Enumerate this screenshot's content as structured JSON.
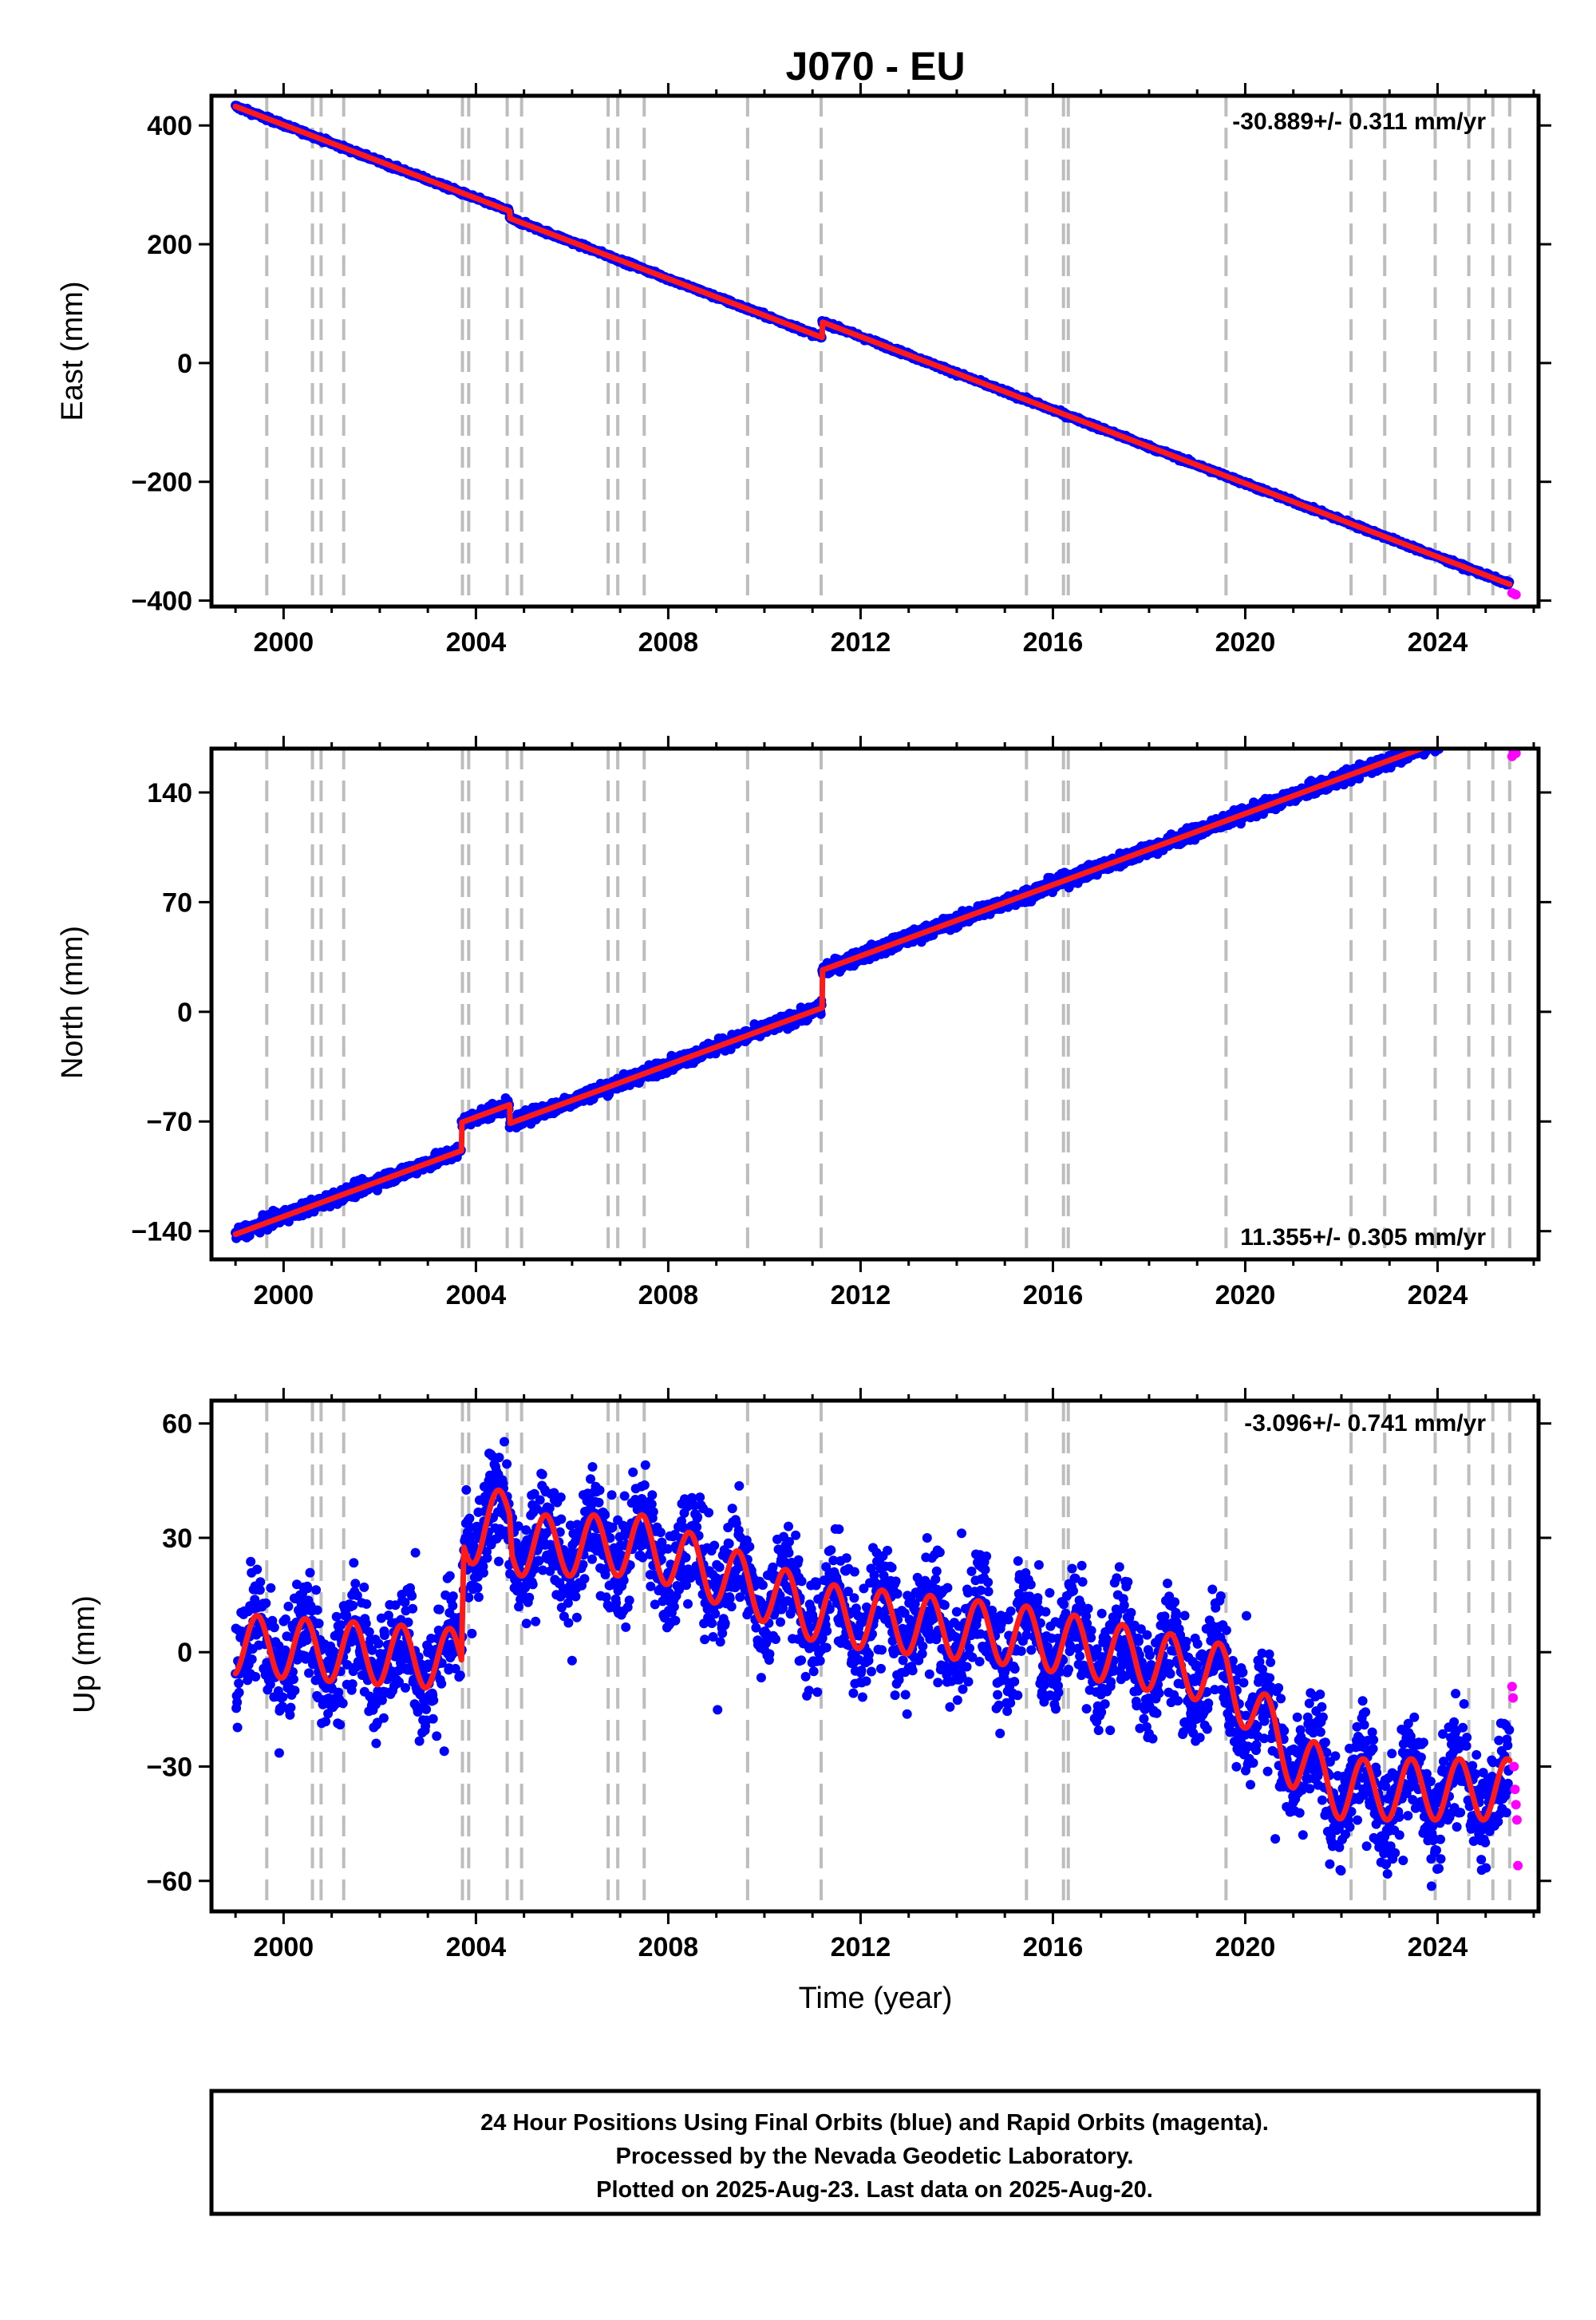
{
  "page": {
    "title": "J070 - EU",
    "xlabel": "Time (year)",
    "footer": [
      "24 Hour Positions Using Final Orbits (blue) and Rapid Orbits (magenta).",
      "Processed by the Nevada Geodetic Laboratory.",
      "Plotted on 2025-Aug-23. Last data on 2025-Aug-20."
    ]
  },
  "colors": {
    "final": "#0000ff",
    "rapid": "#ff00ff",
    "model": "#ff1a1a",
    "events": "#bdbdbd"
  },
  "chart_data": [
    {
      "type": "scatter",
      "name": "east",
      "ylabel": "East (mm)",
      "rate_label": "-30.889+/- 0.311 mm/yr",
      "xlim": [
        1998.5,
        2026.1
      ],
      "ylim": [
        -410,
        450
      ],
      "xticks": [
        2000,
        2004,
        2008,
        2012,
        2016,
        2020,
        2024
      ],
      "yticks": [
        400,
        200,
        0,
        -200,
        -400
      ],
      "ytick_labels": [
        "400",
        "200",
        "0",
        "−200",
        "−400"
      ],
      "series": [
        {
          "kind": "final",
          "x_range": [
            1999.0,
            2025.5
          ],
          "model": {
            "t0": 1999.0,
            "y0": 432,
            "rate": -30.889,
            "offsets": [
              [
                2004.7,
                -12
              ],
              [
                2011.2,
                26
              ]
            ],
            "annual_amp": 0
          },
          "scatter": 2.5
        },
        {
          "kind": "rapid",
          "x": [
            2025.55,
            2025.6,
            2025.63
          ],
          "y": [
            -387,
            -389,
            -390
          ]
        }
      ]
    },
    {
      "type": "scatter",
      "name": "north",
      "ylabel": "North (mm)",
      "rate_label": "11.355+/- 0.305 mm/yr",
      "xlim": [
        1998.5,
        2026.1
      ],
      "ylim": [
        -158,
        168
      ],
      "xticks": [
        2000,
        2004,
        2008,
        2012,
        2016,
        2020,
        2024
      ],
      "yticks": [
        140,
        70,
        0,
        -70,
        -140
      ],
      "ytick_labels": [
        "140",
        "70",
        "0",
        "−70",
        "−140"
      ],
      "series": [
        {
          "kind": "final",
          "x_range": [
            1999.0,
            2025.5
          ],
          "model": {
            "t0": 1999.0,
            "y0": -142,
            "rate": 11.355,
            "offsets": [
              [
                2003.7,
                18
              ],
              [
                2004.7,
                -12
              ],
              [
                2011.2,
                24
              ]
            ],
            "annual_amp": 0
          },
          "scatter": 3
        },
        {
          "kind": "rapid",
          "x": [
            2025.55,
            2025.58,
            2025.61,
            2025.63
          ],
          "y": [
            163,
            166,
            168,
            165
          ]
        }
      ]
    },
    {
      "type": "scatter",
      "name": "up",
      "ylabel": "Up (mm)",
      "rate_label": "-3.096+/- 0.741 mm/yr",
      "xlim": [
        1998.5,
        2026.1
      ],
      "ylim": [
        -68,
        66
      ],
      "xticks": [
        2000,
        2004,
        2008,
        2012,
        2016,
        2020,
        2024
      ],
      "yticks": [
        60,
        30,
        0,
        -30,
        -60
      ],
      "ytick_labels": [
        "60",
        "30",
        "0",
        "−30",
        "−60"
      ],
      "series": [
        {
          "kind": "final",
          "x_range": [
            1999.0,
            2025.5
          ],
          "model": {
            "knots": [
              [
                1999.0,
                2
              ],
              [
                2003.7,
                -2
              ],
              [
                2003.75,
                30
              ],
              [
                2004.7,
                36
              ],
              [
                2004.75,
                28
              ],
              [
                2007.5,
                28
              ],
              [
                2011.2,
                10
              ],
              [
                2015.5,
                4
              ],
              [
                2019.6,
                -6
              ],
              [
                2021.0,
                -28
              ],
              [
                2022.0,
                -36
              ],
              [
                2025.5,
                -36
              ]
            ],
            "annual_amp": 8
          },
          "scatter": 10
        },
        {
          "kind": "rapid",
          "x": [
            2025.55,
            2025.57,
            2025.59,
            2025.61,
            2025.63,
            2025.65,
            2025.67
          ],
          "y": [
            -9,
            -12,
            -30,
            -36,
            -40,
            -44,
            -56
          ]
        }
      ]
    }
  ],
  "event_lines": [
    1999.65,
    2000.6,
    2000.78,
    2001.25,
    2003.72,
    2003.85,
    2004.65,
    2004.95,
    2006.75,
    2006.95,
    2007.5,
    2009.65,
    2011.18,
    2015.45,
    2016.22,
    2016.32,
    2019.6,
    2022.2,
    2022.9,
    2023.95,
    2024.65,
    2025.15,
    2025.5
  ]
}
